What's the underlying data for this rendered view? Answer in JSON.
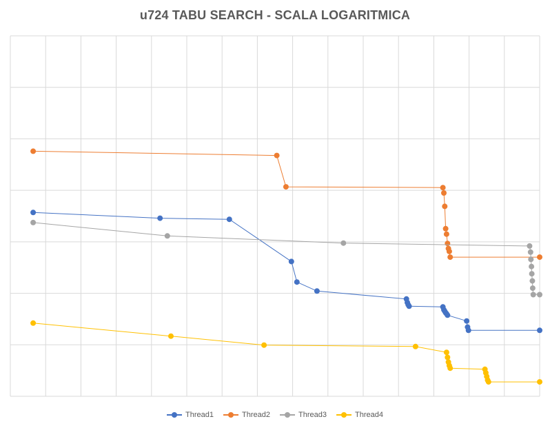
{
  "chart_data": {
    "type": "line",
    "title": "u724 TABU SEARCH - SCALA LOGARITMICA",
    "xlabel": "",
    "ylabel": "",
    "y_scale": "log",
    "xlim": [
      0,
      29
    ],
    "grid": true,
    "legend_position": "bottom",
    "series": [
      {
        "name": "Thread1",
        "color": "#4472C4",
        "points": [
          [
            1.25,
            0.49
          ],
          [
            8.2,
            0.506
          ],
          [
            12.0,
            0.509
          ],
          [
            15.4,
            0.626
          ],
          [
            15.7,
            0.683
          ],
          [
            16.8,
            0.708
          ],
          [
            21.7,
            0.73
          ],
          [
            21.75,
            0.74
          ],
          [
            21.8,
            0.746
          ],
          [
            21.85,
            0.75
          ],
          [
            23.7,
            0.752
          ],
          [
            23.75,
            0.76
          ],
          [
            23.8,
            0.764
          ],
          [
            23.85,
            0.768
          ],
          [
            23.9,
            0.771
          ],
          [
            23.95,
            0.775
          ],
          [
            25.0,
            0.791
          ],
          [
            25.05,
            0.808
          ],
          [
            25.1,
            0.817
          ],
          [
            29.0,
            0.817
          ]
        ]
      },
      {
        "name": "Thread2",
        "color": "#ED7D31",
        "points": [
          [
            1.25,
            0.32
          ],
          [
            14.6,
            0.332
          ],
          [
            15.1,
            0.419
          ],
          [
            23.7,
            0.421
          ],
          [
            23.75,
            0.436
          ],
          [
            23.8,
            0.473
          ],
          [
            23.85,
            0.535
          ],
          [
            23.9,
            0.55
          ],
          [
            23.95,
            0.576
          ],
          [
            24.0,
            0.59
          ],
          [
            24.05,
            0.598
          ],
          [
            24.1,
            0.614
          ],
          [
            29.0,
            0.614
          ]
        ]
      },
      {
        "name": "Thread3",
        "color": "#A5A5A5",
        "points": [
          [
            1.25,
            0.518
          ],
          [
            8.6,
            0.555
          ],
          [
            18.25,
            0.575
          ],
          [
            28.45,
            0.583
          ],
          [
            28.5,
            0.6
          ],
          [
            28.52,
            0.62
          ],
          [
            28.55,
            0.64
          ],
          [
            28.57,
            0.66
          ],
          [
            28.6,
            0.68
          ],
          [
            28.62,
            0.7
          ],
          [
            28.65,
            0.718
          ],
          [
            29.0,
            0.718
          ]
        ]
      },
      {
        "name": "Thread4",
        "color": "#FFC000",
        "points": [
          [
            1.25,
            0.797
          ],
          [
            8.8,
            0.833
          ],
          [
            13.9,
            0.858
          ],
          [
            22.2,
            0.862
          ],
          [
            23.9,
            0.878
          ],
          [
            23.95,
            0.892
          ],
          [
            24.0,
            0.905
          ],
          [
            24.05,
            0.915
          ],
          [
            24.1,
            0.922
          ],
          [
            26.0,
            0.925
          ],
          [
            26.05,
            0.935
          ],
          [
            26.1,
            0.945
          ],
          [
            26.15,
            0.955
          ],
          [
            26.2,
            0.96
          ],
          [
            29.0,
            0.96
          ]
        ]
      }
    ]
  }
}
